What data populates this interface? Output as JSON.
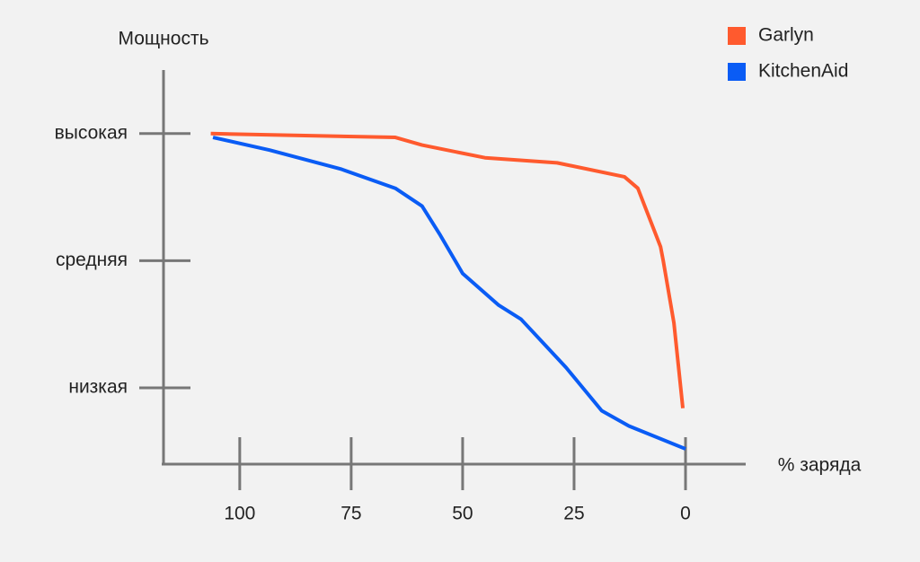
{
  "chart_data": {
    "type": "line",
    "ylabel": "Мощность",
    "xlabel": "% заряда",
    "xlim": [
      117.3,
      -13.5
    ],
    "xticks": [
      100,
      75,
      50,
      25,
      0
    ],
    "ylim": [
      0.4,
      3.5
    ],
    "yticks": [
      {
        "value": 3,
        "label": "высокая"
      },
      {
        "value": 2,
        "label": "средняя"
      },
      {
        "value": 1,
        "label": "низкая"
      }
    ],
    "legend": "top-right",
    "series": [
      {
        "name": "Garlyn",
        "color": "#ff5a2e",
        "x": [
          106.5,
          65.1,
          59.1,
          45,
          28.8,
          13.7,
          10.7,
          5.6,
          5.0,
          2.6,
          0.6
        ],
        "values": [
          3.0,
          2.97,
          2.91,
          2.81,
          2.77,
          2.66,
          2.57,
          2.11,
          2.0,
          1.51,
          0.84
        ]
      },
      {
        "name": "KitchenAid",
        "color": "#0a5cf5",
        "x": [
          106,
          93.3,
          77.2,
          65.1,
          59.1,
          55,
          50,
          41.9,
          36.9,
          26.8,
          18.8,
          12.7,
          0
        ],
        "values": [
          2.97,
          2.87,
          2.72,
          2.57,
          2.43,
          2.2,
          1.9,
          1.65,
          1.54,
          1.16,
          0.82,
          0.7,
          0.52
        ]
      }
    ]
  }
}
